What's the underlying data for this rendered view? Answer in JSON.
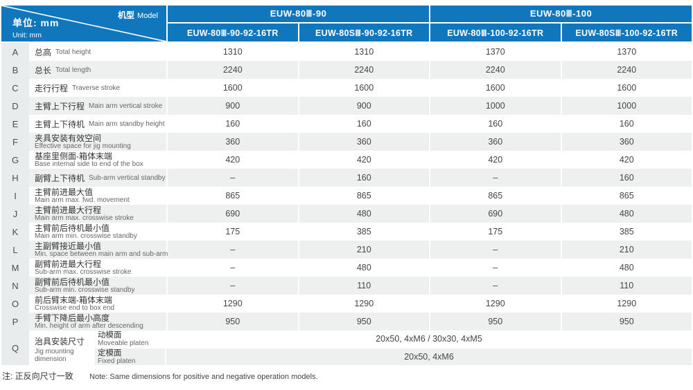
{
  "corner": {
    "model_zh": "机型",
    "model_en": "Model",
    "unit_zh": "单位: mm",
    "unit_en": "Unit: mm"
  },
  "column_groups": [
    {
      "label": "EUW-80Ⅲ-90",
      "columns": [
        "EUW-80Ⅲ-90-92-16TR",
        "EUW-80SⅢ-90-92-16TR"
      ]
    },
    {
      "label": "EUW-80Ⅲ-100",
      "columns": [
        "EUW-80Ⅲ-100-92-16TR",
        "EUW-80SⅢ-100-92-16TR"
      ]
    }
  ],
  "rows": [
    {
      "key": "A",
      "zh": "总高",
      "en": "Total height",
      "two_line": false,
      "values": [
        "1310",
        "1310",
        "1370",
        "1370"
      ]
    },
    {
      "key": "B",
      "zh": "总长",
      "en": "Total length",
      "two_line": false,
      "values": [
        "2240",
        "2240",
        "2240",
        "2240"
      ]
    },
    {
      "key": "C",
      "zh": "走行行程",
      "en": "Traverse stroke",
      "two_line": false,
      "values": [
        "1600",
        "1600",
        "1600",
        "1600"
      ]
    },
    {
      "key": "D",
      "zh": "主臂上下行程",
      "en": "Main arm vertical stroke",
      "two_line": false,
      "values": [
        "900",
        "900",
        "1000",
        "1000"
      ]
    },
    {
      "key": "E",
      "zh": "主臂上下待机",
      "en": "Main arm standby height",
      "two_line": false,
      "values": [
        "160",
        "160",
        "160",
        "160"
      ]
    },
    {
      "key": "F",
      "zh": "夹具安装有效空间",
      "en": "Effective space for jig mounting",
      "two_line": true,
      "values": [
        "360",
        "360",
        "360",
        "360"
      ]
    },
    {
      "key": "G",
      "zh": "基座里侧面-箱体末端",
      "en": "Base internal side to end of the box",
      "two_line": true,
      "values": [
        "420",
        "420",
        "420",
        "420"
      ]
    },
    {
      "key": "H",
      "zh": "副臂上下待机",
      "en": "Sub-arm vertical standby",
      "two_line": false,
      "values": [
        "–",
        "160",
        "–",
        "160"
      ]
    },
    {
      "key": "I",
      "zh": "主臂前进最大值",
      "en": "Main arm max. fwd. movement",
      "two_line": true,
      "values": [
        "865",
        "865",
        "865",
        "865"
      ]
    },
    {
      "key": "J",
      "zh": "主臂前进最大行程",
      "en": "Main arm max. crosswise stroke",
      "two_line": true,
      "values": [
        "690",
        "480",
        "690",
        "480"
      ]
    },
    {
      "key": "K",
      "zh": "主臂前后待机最小值",
      "en": "Main arm min. crosswise standby",
      "two_line": true,
      "values": [
        "175",
        "385",
        "175",
        "385"
      ]
    },
    {
      "key": "L",
      "zh": "主副臂接近最小值",
      "en": "Min. space between main arm and sub-arm",
      "two_line": true,
      "values": [
        "–",
        "210",
        "–",
        "210"
      ]
    },
    {
      "key": "M",
      "zh": "副臂前进最大行程",
      "en": "Sub-arm max. crosswise stroke",
      "two_line": true,
      "values": [
        "–",
        "480",
        "–",
        "480"
      ]
    },
    {
      "key": "N",
      "zh": "副臂前后待机最小值",
      "en": "Sub-arm min. crosswise standby",
      "two_line": true,
      "values": [
        "–",
        "110",
        "–",
        "110"
      ]
    },
    {
      "key": "O",
      "zh": "前后臂末端-箱体末端",
      "en": "Crosswise end to box end",
      "two_line": true,
      "values": [
        "1290",
        "1290",
        "1290",
        "1290"
      ]
    },
    {
      "key": "P",
      "zh": "手臂下降后最小高度",
      "en": "Min. height of arm after descending",
      "two_line": true,
      "values": [
        "950",
        "950",
        "950",
        "950"
      ]
    }
  ],
  "jig": {
    "key": "Q",
    "zh": "治具安装尺寸",
    "en": "Jig mounting dimension",
    "sub_rows": [
      {
        "zh": "动模面",
        "en": "Moveable platen",
        "value": "20x50, 4xM6 / 30x30, 4xM5"
      },
      {
        "zh": "定模面",
        "en": "Fixed platen",
        "value": "20x50, 4xM6"
      }
    ]
  },
  "footnote": {
    "zh": "注: 正反向尺寸一致",
    "en": "Note: Same dimensions for positive and negative operation models."
  },
  "colors": {
    "header_blue": "#1177bd",
    "stripe": "#eeefef",
    "letter_col": "#e9ecec"
  }
}
